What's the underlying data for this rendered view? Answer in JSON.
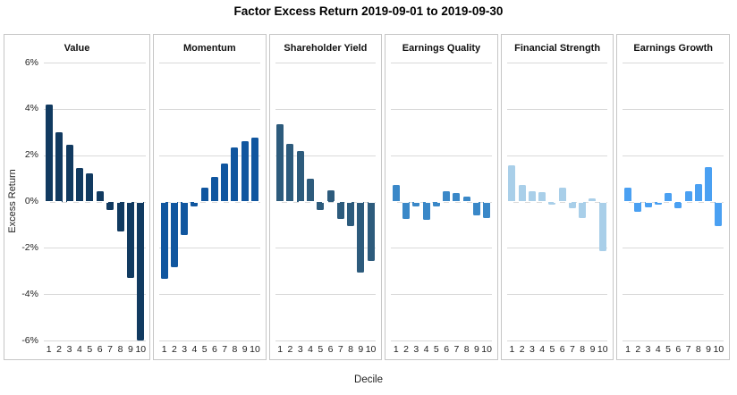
{
  "title": "Factor Excess Return 2019-09-01 to 2019-09-30",
  "axes": {
    "y_label": "Excess Return",
    "x_label": "Decile",
    "y_ticks": [
      "6%",
      "4%",
      "2%",
      "0%",
      "-2%",
      "-4%",
      "-6%"
    ],
    "x_ticks": [
      "1",
      "2",
      "3",
      "4",
      "5",
      "6",
      "7",
      "8",
      "9",
      "10"
    ]
  },
  "chart_data": {
    "type": "bar",
    "title": "Factor Excess Return 2019-09-01 to 2019-09-30",
    "xlabel": "Decile",
    "ylabel": "Excess Return",
    "ylim": [
      -6,
      6
    ],
    "y_tick_values": [
      6,
      4,
      2,
      0,
      -2,
      -4,
      -6
    ],
    "grid": "horizontal",
    "legend": "none",
    "categories": [
      "1",
      "2",
      "3",
      "4",
      "5",
      "6",
      "7",
      "8",
      "9",
      "10"
    ],
    "unit": "percent",
    "panels": [
      {
        "name": "Value",
        "color": "#113a60",
        "values": [
          4.2,
          3.0,
          2.45,
          1.45,
          1.2,
          0.45,
          -0.35,
          -1.3,
          -3.3,
          -6.0
        ]
      },
      {
        "name": "Momentum",
        "color": "#10569f",
        "values": [
          -3.35,
          -2.85,
          -1.45,
          -0.2,
          0.6,
          1.05,
          1.65,
          2.35,
          2.6,
          2.75
        ]
      },
      {
        "name": "Shareholder Yield",
        "color": "#2d5b7c",
        "values": [
          3.35,
          2.5,
          2.2,
          1.0,
          -0.35,
          0.5,
          -0.75,
          -1.05,
          -3.05,
          -2.55
        ]
      },
      {
        "name": "Earnings Quality",
        "color": "#3a88c8",
        "values": [
          0.7,
          -0.75,
          -0.2,
          -0.8,
          -0.2,
          0.45,
          0.35,
          0.2,
          -0.6,
          -0.7
        ]
      },
      {
        "name": "Financial Strength",
        "color": "#a9cfe9",
        "values": [
          1.55,
          0.7,
          0.45,
          0.4,
          -0.15,
          0.6,
          -0.3,
          -0.7,
          0.15,
          -2.15
        ]
      },
      {
        "name": "Earnings Growth",
        "color": "#4aa0f2",
        "values": [
          0.6,
          -0.45,
          -0.25,
          -0.15,
          0.35,
          -0.3,
          0.45,
          0.75,
          1.5,
          -1.05
        ]
      }
    ],
    "style": {
      "zero_line": "dashed-white-over-bars",
      "gridline_color": "#d9d9d9",
      "panel_border_color": "#c6c6c6",
      "background": "#ffffff"
    }
  }
}
